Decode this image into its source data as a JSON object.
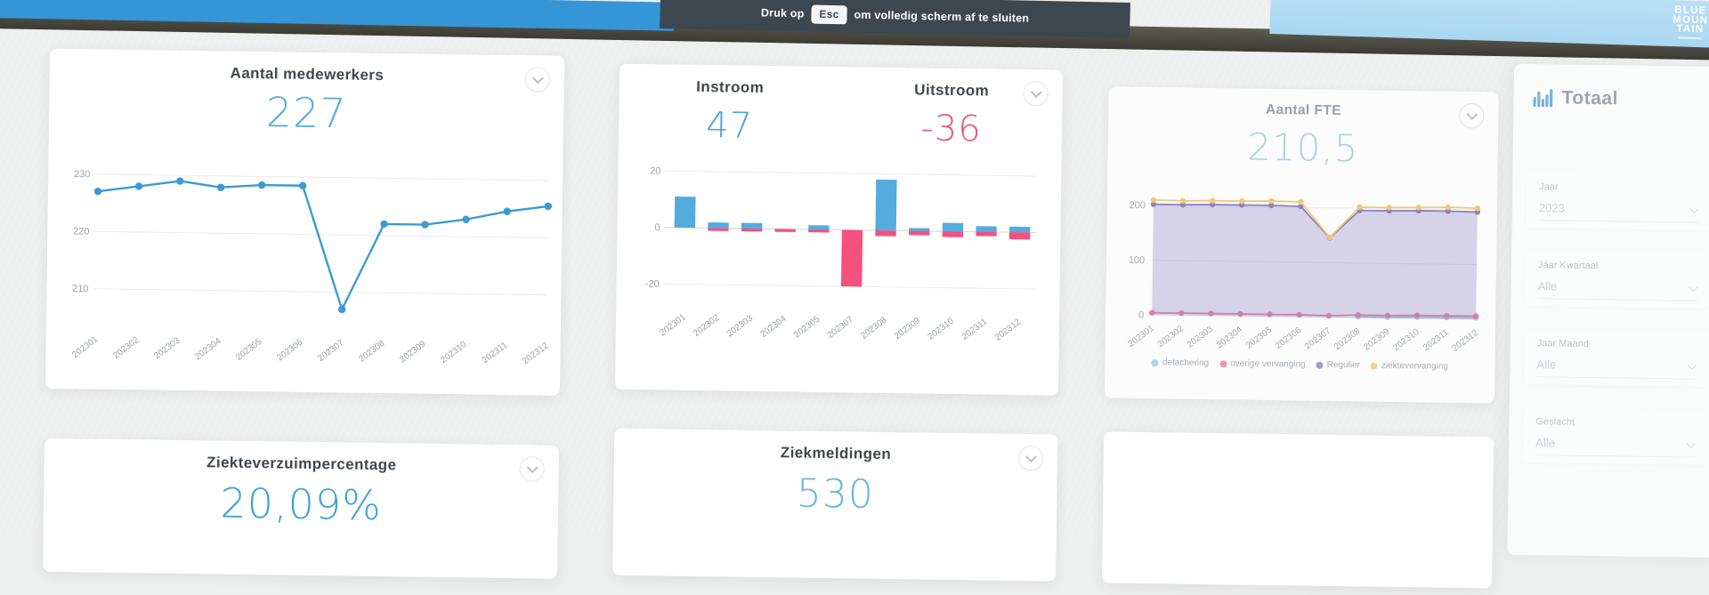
{
  "topbar": {
    "hint_prefix": "Druk op",
    "esc_key": "Esc",
    "hint_suffix": "om volledig scherm af te sluiten",
    "logo_lines": [
      "BLUE",
      "MOUN",
      "TAIN"
    ]
  },
  "cards": {
    "medewerkers": {
      "title": "Aantal medewerkers",
      "value": "227"
    },
    "flow": {
      "instroom_title": "Instroom",
      "instroom_value": "47",
      "uitstroom_title": "Uitstroom",
      "uitstroom_value": "-36"
    },
    "fte": {
      "title": "Aantal FTE",
      "value": "210,5"
    },
    "verzuim": {
      "title": "Ziekteverzuimpercentage",
      "value": "20,09%"
    },
    "ziekmeldingen": {
      "title": "Ziekmeldingen",
      "value": "530"
    }
  },
  "filters_panel": {
    "title": "Totaal",
    "filters": [
      {
        "label": "Jaar",
        "value": "2023"
      },
      {
        "label": "Jaar Kwartaal",
        "value": "Alle"
      },
      {
        "label": "Jaar Maand",
        "value": "Alle"
      },
      {
        "label": "Geslacht",
        "value": "Alle"
      }
    ]
  },
  "colors": {
    "kpi_blue": "#58aed8",
    "kpi_pink": "#e8537c",
    "line_blue": "#3d9ad2",
    "bar_blue": "#55abde",
    "bar_pink": "#f4517e",
    "topbar_dark": "#3d4750",
    "topbar_blue": "#3496d6",
    "sky_blue": "#b9dff5"
  },
  "chart_data": [
    {
      "id": "medewerkers",
      "type": "line",
      "title": "Aantal medewerkers",
      "x": [
        "202301",
        "202302",
        "202303",
        "202304",
        "202305",
        "202306",
        "202307",
        "202308",
        "202309",
        "202310",
        "202311",
        "202312"
      ],
      "series": [
        {
          "name": "Aantal medewerkers",
          "color": "#3d9ad2",
          "values": [
            227,
            228,
            229,
            228,
            228.5,
            228.5,
            207,
            222,
            222,
            223,
            224.5,
            225.5
          ]
        }
      ],
      "yticks": [
        210,
        220,
        230
      ],
      "ylim": [
        203.5,
        233
      ],
      "grid": true,
      "legend_position": "none"
    },
    {
      "id": "flow",
      "type": "bar",
      "title": "Instroom / Uitstroom",
      "x": [
        "202301",
        "202302",
        "202303",
        "202304",
        "202305",
        "202307",
        "202308",
        "202309",
        "202310",
        "202311",
        "202312"
      ],
      "series": [
        {
          "name": "Instroom",
          "color": "#55abde",
          "values": [
            11,
            2,
            2,
            0,
            1.5,
            0,
            18,
            1,
            3,
            2,
            2
          ]
        },
        {
          "name": "Uitstroom",
          "color": "#f4517e",
          "values": [
            0,
            -1,
            -1,
            -1,
            -1,
            -20,
            -2,
            -1.5,
            -2,
            -1.5,
            -2.5
          ]
        }
      ],
      "yticks": [
        -20,
        0,
        20
      ],
      "ylim": [
        -27,
        24
      ],
      "grid": true,
      "legend_position": "none"
    },
    {
      "id": "fte",
      "type": "area",
      "title": "Aantal FTE",
      "x": [
        "202301",
        "202302",
        "202303",
        "202304",
        "202305",
        "202306",
        "202307",
        "202308",
        "202309",
        "202310",
        "202311",
        "202312"
      ],
      "series": [
        {
          "name": "detachering",
          "color": "#8ec6e8",
          "values": [
            null,
            null,
            null,
            null,
            null,
            null,
            null,
            2,
            2,
            3,
            3,
            3
          ]
        },
        {
          "name": "overige vervanging",
          "color": "#ef6a93",
          "values": [
            4,
            4,
            4,
            4,
            4,
            4,
            3,
            5,
            5,
            6,
            6,
            6
          ]
        },
        {
          "name": "Regulier",
          "color": "#8274bc",
          "fill": "rgba(140,129,192,0.38)",
          "values": [
            202,
            202,
            203,
            203,
            203,
            202,
            145,
            196,
            196,
            197,
            197,
            196
          ]
        },
        {
          "name": "ziektevervanging",
          "color": "#f0c468",
          "values": [
            210,
            209,
            210,
            210,
            211,
            210,
            146,
            202,
            202,
            203,
            204,
            203
          ]
        }
      ],
      "yticks": [
        0,
        100,
        200
      ],
      "ylim": [
        0,
        237
      ],
      "grid": true,
      "legend_position": "bottom"
    }
  ]
}
